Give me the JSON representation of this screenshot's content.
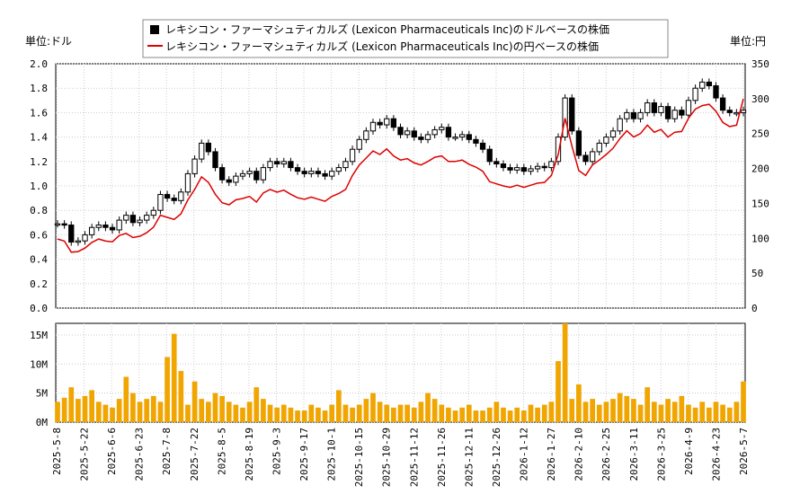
{
  "chart_data": {
    "type": "line",
    "legend": {
      "usd": "レキシコン・ファーマシュティカルズ (Lexicon Pharmaceuticals Inc)のドルベースの株価",
      "jpy": "レキシコン・ファーマシュティカルズ (Lexicon Pharmaceuticals Inc)の円ベースの株価"
    },
    "unit_left": "単位:ドル",
    "unit_right": "単位:円",
    "colors": {
      "usd": "#000000",
      "jpy": "#dd0000",
      "volume": "#f0a500"
    },
    "price_y_left_ticks": [
      "0.0",
      "0.2",
      "0.4",
      "0.6",
      "0.8",
      "1.0",
      "1.2",
      "1.4",
      "1.6",
      "1.8",
      "2.0"
    ],
    "price_y_right_ticks": [
      "0",
      "50",
      "100",
      "150",
      "200",
      "250",
      "300",
      "350"
    ],
    "volume_y_ticks": [
      "0M",
      "5M",
      "10M",
      "15M"
    ],
    "x_tick_labels": [
      "2025-5-8",
      "2025-5-22",
      "2025-6-6",
      "2025-6-23",
      "2025-7-8",
      "2025-7-22",
      "2025-8-5",
      "2025-8-19",
      "2025-9-3",
      "2025-9-17",
      "2025-10-1",
      "2025-10-15",
      "2025-10-29",
      "2025-11-12",
      "2025-11-26",
      "2025-12-11",
      "2025-12-26",
      "2026-1-12",
      "2026-1-27",
      "2026-2-10",
      "2026-2-25",
      "2026-3-11",
      "2026-3-25",
      "2026-4-9",
      "2026-4-23",
      "2026-5-7"
    ],
    "ylim_usd": [
      0,
      2.0
    ],
    "ylim_jpy": [
      0,
      350
    ],
    "ylim_volume": [
      0,
      17
    ],
    "series": [
      {
        "key": "usd_close",
        "values": [
          0.69,
          0.68,
          0.54,
          0.55,
          0.6,
          0.66,
          0.68,
          0.66,
          0.64,
          0.72,
          0.76,
          0.7,
          0.72,
          0.76,
          0.8,
          0.93,
          0.9,
          0.88,
          0.95,
          1.1,
          1.22,
          1.35,
          1.28,
          1.15,
          1.05,
          1.03,
          1.08,
          1.1,
          1.12,
          1.05,
          1.15,
          1.2,
          1.18,
          1.2,
          1.15,
          1.12,
          1.1,
          1.12,
          1.1,
          1.08,
          1.12,
          1.15,
          1.2,
          1.3,
          1.38,
          1.45,
          1.52,
          1.5,
          1.55,
          1.48,
          1.42,
          1.45,
          1.4,
          1.38,
          1.42,
          1.46,
          1.48,
          1.4,
          1.4,
          1.42,
          1.38,
          1.35,
          1.3,
          1.2,
          1.18,
          1.15,
          1.13,
          1.15,
          1.12,
          1.14,
          1.16,
          1.15,
          1.2,
          1.4,
          1.72,
          1.45,
          1.25,
          1.2,
          1.28,
          1.35,
          1.4,
          1.45,
          1.55,
          1.6,
          1.55,
          1.6,
          1.68,
          1.6,
          1.65,
          1.55,
          1.62,
          1.58,
          1.7,
          1.8,
          1.85,
          1.82,
          1.72,
          1.62,
          1.6,
          1.6,
          1.62
        ]
      },
      {
        "key": "jpy_close",
        "values": [
          99,
          96,
          80,
          81,
          86,
          94,
          99,
          96,
          95,
          104,
          107,
          101,
          103,
          108,
          116,
          133,
          130,
          127,
          135,
          155,
          170,
          188,
          180,
          163,
          151,
          148,
          155,
          157,
          160,
          152,
          165,
          170,
          166,
          169,
          163,
          158,
          156,
          159,
          156,
          153,
          160,
          164,
          170,
          190,
          205,
          215,
          225,
          220,
          228,
          218,
          212,
          214,
          208,
          205,
          210,
          216,
          218,
          210,
          210,
          212,
          206,
          202,
          196,
          181,
          178,
          175,
          173,
          176,
          173,
          176,
          179,
          180,
          190,
          220,
          272,
          232,
          197,
          190,
          205,
          212,
          220,
          229,
          243,
          254,
          245,
          250,
          262,
          252,
          256,
          245,
          252,
          253,
          272,
          285,
          290,
          292,
          282,
          266,
          260,
          262,
          300
        ]
      },
      {
        "key": "volume_millions",
        "values": [
          3.5,
          4.2,
          6,
          4,
          4.5,
          5.5,
          3.5,
          3,
          2.5,
          4,
          7.8,
          5,
          3.5,
          4,
          4.5,
          3.5,
          11.2,
          15.2,
          8.8,
          3,
          7,
          4,
          3.5,
          5,
          4.5,
          3.5,
          3,
          2.5,
          3.5,
          6,
          4,
          3,
          2.5,
          3,
          2.5,
          2,
          2,
          3,
          2.5,
          2,
          3,
          5.5,
          3,
          2.5,
          3,
          4,
          5,
          3.5,
          3,
          2.5,
          3,
          3,
          2.5,
          3.5,
          5,
          4,
          3,
          2.5,
          2,
          2.5,
          3,
          2,
          2,
          2.5,
          3.5,
          2.5,
          2,
          2.5,
          2,
          3,
          2.5,
          3,
          3.5,
          10.5,
          17,
          4,
          6.5,
          3.5,
          4,
          3,
          3.5,
          4,
          5,
          4.5,
          4,
          3,
          6,
          3.5,
          3,
          4,
          3.5,
          4.5,
          3,
          2.5,
          3.5,
          2.5,
          3.5,
          3,
          2.5,
          3.5,
          7
        ]
      }
    ]
  }
}
